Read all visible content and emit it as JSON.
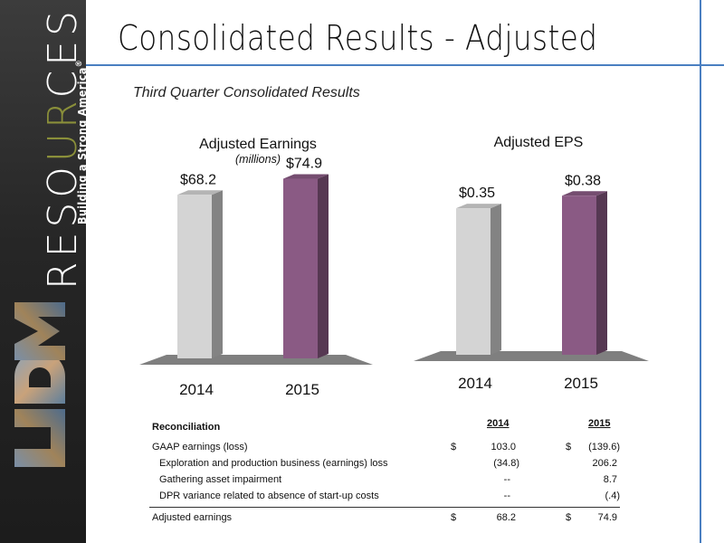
{
  "page": {
    "title": "Consolidated Results - Adjusted",
    "subtitle": "Third Quarter Consolidated Results"
  },
  "brand": {
    "word_part1": "RESO",
    "word_accent": "UR",
    "word_part2": "CES",
    "tagline": "Building a Strong America",
    "registered": "®",
    "logo_text": "MDU"
  },
  "chart_data": [
    {
      "type": "bar",
      "title": "Adjusted Earnings",
      "unit_label": "(millions)",
      "categories": [
        "2014",
        "2015"
      ],
      "values": [
        68.2,
        74.9
      ],
      "value_labels": [
        "$68.2",
        "$74.9"
      ],
      "colors": [
        "#d4d4d4",
        "#8a5a84"
      ],
      "ylim": [
        0,
        80
      ],
      "grid": false,
      "legend": "none"
    },
    {
      "type": "bar",
      "title": "Adjusted EPS",
      "unit_label": "",
      "categories": [
        "2014",
        "2015"
      ],
      "values": [
        0.35,
        0.38
      ],
      "value_labels": [
        "$0.35",
        "$0.38"
      ],
      "colors": [
        "#d4d4d4",
        "#8a5a84"
      ],
      "ylim": [
        0,
        0.4
      ],
      "grid": false,
      "legend": "none"
    }
  ],
  "reconciliation": {
    "header": "Reconciliation",
    "years": [
      "2014",
      "2015"
    ],
    "rows": [
      {
        "label": "GAAP earnings (loss)",
        "cur1": "$",
        "v1": "103.0",
        "cur2": "$",
        "v2": "(139.6)"
      },
      {
        "label": "Exploration and production business (earnings) loss",
        "cur1": "",
        "v1": "(34.8)",
        "cur2": "",
        "v2": "206.2"
      },
      {
        "label": "Gathering asset impairment",
        "cur1": "",
        "v1": "--",
        "cur2": "",
        "v2": "8.7"
      },
      {
        "label": "DPR variance related to absence of start-up costs",
        "cur1": "",
        "v1": "--",
        "cur2": "",
        "v2": "(.4)"
      }
    ],
    "total": {
      "label": "Adjusted earnings",
      "cur1": "$",
      "v1": "68.2",
      "cur2": "$",
      "v2": "74.9"
    }
  }
}
